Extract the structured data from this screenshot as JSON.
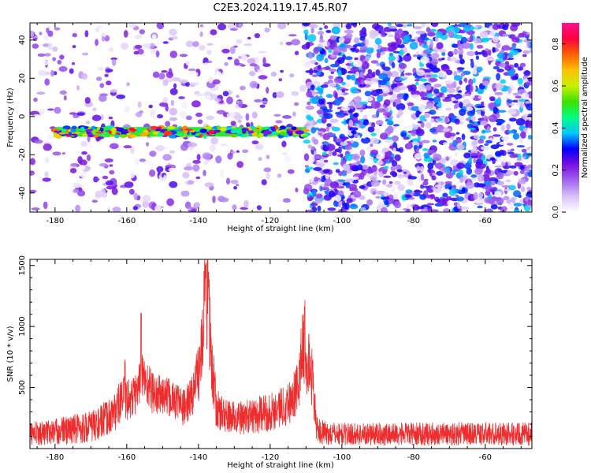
{
  "title": "C2E3.2024.119.17.45.R07",
  "colors": {
    "snr_line": "#ee2e2e",
    "axis": "#000000"
  },
  "chart_data": [
    {
      "type": "heatmap",
      "xlabel": "Height of straight line (km)",
      "ylabel": "Frequency (Hz)",
      "xlim": [
        -187,
        -47
      ],
      "ylim": [
        -50,
        49
      ],
      "x_ticks": [
        -180,
        -160,
        -140,
        -120,
        -100,
        -80,
        -60
      ],
      "y_ticks": [
        40,
        20,
        0,
        -20,
        -40
      ],
      "grid": false,
      "features": [
        {
          "kind": "band",
          "x_start": -180,
          "x_end": -110,
          "y_center": -8,
          "value": 0.35
        },
        {
          "kind": "noise",
          "x_start": -187,
          "x_end": -110,
          "density": "low",
          "value": 0.12
        },
        {
          "kind": "noise",
          "x_start": -110,
          "x_end": -47,
          "density": "high",
          "value": 0.18
        }
      ],
      "colorbar": {
        "label": "Normalized spectral amplitude",
        "range": [
          0,
          0.9
        ],
        "ticks": [
          0.0,
          0.2,
          0.4,
          0.6,
          0.8
        ],
        "stops": [
          "#ffffff",
          "#d8c0f8",
          "#a066f0",
          "#7a10e0",
          "#0000ff",
          "#00c8ff",
          "#00ff80",
          "#40e000",
          "#c8f000",
          "#ffc000",
          "#ff6000",
          "#ff0040",
          "#ff1090"
        ]
      }
    },
    {
      "type": "line",
      "xlabel": "Height of straight line (km)",
      "ylabel": "SNR (10 * v/v)",
      "xlim": [
        -187,
        -47
      ],
      "ylim": [
        0,
        1550
      ],
      "x_ticks": [
        -180,
        -160,
        -140,
        -120,
        -100,
        -80,
        -60
      ],
      "y_ticks": [
        1500,
        1000,
        500
      ],
      "grid": false,
      "series": [
        {
          "envelope": [
            [
              -187,
              120,
              100
            ],
            [
              -183,
              130,
              100
            ],
            [
              -180,
              140,
              110
            ],
            [
              -177,
              150,
              120
            ],
            [
              -174,
              165,
              130
            ],
            [
              -171,
              175,
              130
            ],
            [
              -168,
              200,
              140
            ],
            [
              -165,
              260,
              150
            ],
            [
              -163,
              320,
              170
            ],
            [
              -161,
              420,
              180
            ],
            [
              -159,
              400,
              170
            ],
            [
              -157,
              470,
              180
            ],
            [
              -156,
              620,
              200
            ],
            [
              -154,
              520,
              190
            ],
            [
              -152,
              430,
              180
            ],
            [
              -150,
              440,
              170
            ],
            [
              -148,
              410,
              160
            ],
            [
              -146,
              390,
              160
            ],
            [
              -144,
              330,
              150
            ],
            [
              -142,
              420,
              170
            ],
            [
              -141,
              520,
              200
            ],
            [
              -140,
              620,
              250
            ],
            [
              -139,
              980,
              380
            ],
            [
              -138,
              1300,
              450
            ],
            [
              -137,
              1050,
              380
            ],
            [
              -136,
              620,
              280
            ],
            [
              -135,
              320,
              170
            ],
            [
              -132,
              260,
              140
            ],
            [
              -128,
              250,
              140
            ],
            [
              -124,
              270,
              150
            ],
            [
              -120,
              300,
              160
            ],
            [
              -117,
              340,
              170
            ],
            [
              -114,
              400,
              190
            ],
            [
              -112,
              520,
              220
            ],
            [
              -111,
              880,
              300
            ],
            [
              -110,
              650,
              260
            ],
            [
              -109,
              700,
              280
            ],
            [
              -108,
              520,
              220
            ],
            [
              -107,
              150,
              110
            ],
            [
              -104,
              120,
              95
            ],
            [
              -100,
              120,
              95
            ],
            [
              -90,
              118,
              95
            ],
            [
              -80,
              120,
              95
            ],
            [
              -70,
              120,
              95
            ],
            [
              -60,
              122,
              95
            ],
            [
              -55,
              120,
              95
            ],
            [
              -47,
              118,
              95
            ]
          ],
          "peaks": [
            [
              -160.5,
              730
            ],
            [
              -156,
              1120
            ],
            [
              -138,
              1540
            ],
            [
              -137.2,
              1450
            ],
            [
              -110.4,
              1250
            ]
          ]
        }
      ]
    }
  ]
}
